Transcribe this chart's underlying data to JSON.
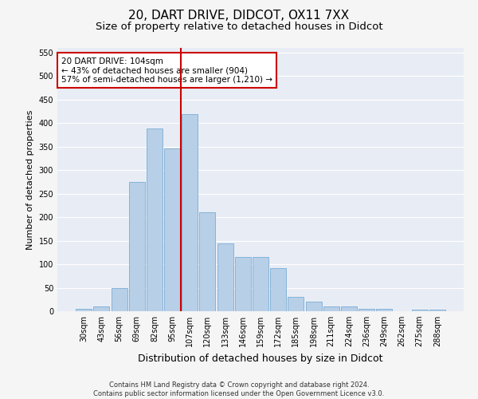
{
  "title_line1": "20, DART DRIVE, DIDCOT, OX11 7XX",
  "title_line2": "Size of property relative to detached houses in Didcot",
  "xlabel": "Distribution of detached houses by size in Didcot",
  "ylabel": "Number of detached properties",
  "categories": [
    "30sqm",
    "43sqm",
    "56sqm",
    "69sqm",
    "82sqm",
    "95sqm",
    "107sqm",
    "120sqm",
    "133sqm",
    "146sqm",
    "159sqm",
    "172sqm",
    "185sqm",
    "198sqm",
    "211sqm",
    "224sqm",
    "236sqm",
    "249sqm",
    "262sqm",
    "275sqm",
    "288sqm"
  ],
  "values": [
    5,
    11,
    49,
    275,
    388,
    347,
    420,
    211,
    144,
    116,
    116,
    91,
    30,
    20,
    11,
    11,
    5,
    5,
    0,
    3,
    3
  ],
  "bar_color": "#b8cfe8",
  "bar_edgecolor": "#7aadd4",
  "vline_index": 6,
  "vline_color": "#cc0000",
  "annotation_line1": "20 DART DRIVE: 104sqm",
  "annotation_line2": "← 43% of detached houses are smaller (904)",
  "annotation_line3": "57% of semi-detached houses are larger (1,210) →",
  "annotation_box_facecolor": "#ffffff",
  "annotation_box_edgecolor": "#cc0000",
  "ylim": [
    0,
    560
  ],
  "yticks": [
    0,
    50,
    100,
    150,
    200,
    250,
    300,
    350,
    400,
    450,
    500,
    550
  ],
  "plot_bg_color": "#e8edf5",
  "fig_bg_color": "#f5f5f5",
  "grid_color": "#ffffff",
  "footer_line1": "Contains HM Land Registry data © Crown copyright and database right 2024.",
  "footer_line2": "Contains public sector information licensed under the Open Government Licence v3.0.",
  "title_fontsize": 11,
  "subtitle_fontsize": 9.5,
  "tick_fontsize": 7,
  "ylabel_fontsize": 8,
  "xlabel_fontsize": 9,
  "annotation_fontsize": 7.5,
  "footer_fontsize": 6
}
